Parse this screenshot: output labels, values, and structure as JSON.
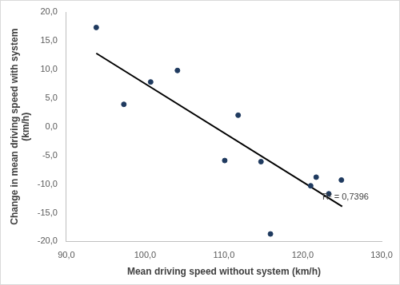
{
  "chart_data": {
    "type": "scatter",
    "x_label": "Mean driving speed without system (km/h)",
    "y_label": [
      "Change in mean driving speed with system",
      "(km/h)"
    ],
    "series": [
      {
        "type": "scatter",
        "marker": "circle",
        "color": "#1f3a5f",
        "x": [
          93.8,
          97.3,
          100.7,
          104.1,
          110.1,
          111.8,
          114.7,
          115.9,
          121.0,
          121.7,
          123.3,
          124.9
        ],
        "values": [
          17.3,
          3.9,
          7.8,
          9.8,
          -5.9,
          2.0,
          -6.1,
          -18.7,
          -10.3,
          -8.8,
          -11.7,
          -9.3
        ]
      },
      {
        "type": "line",
        "line_style": "solid",
        "color": "#000000",
        "x": [
          93.8,
          125.0
        ],
        "values": [
          12.8,
          -13.9
        ]
      }
    ],
    "annotations": [
      {
        "text": "R² = 0,7396",
        "x": 122.5,
        "y": -12.3
      }
    ],
    "xlim": [
      90,
      130
    ],
    "xticks": [
      {
        "value": 90,
        "label": "90,0"
      },
      {
        "value": 100,
        "label": "100,0"
      },
      {
        "value": 110,
        "label": "110,0"
      },
      {
        "value": 120,
        "label": "120,0"
      },
      {
        "value": 130,
        "label": "130,0"
      }
    ],
    "ylim": [
      -20,
      20
    ],
    "yticks": [
      {
        "value": -20,
        "label": "-20,0"
      },
      {
        "value": -15,
        "label": "-15,0"
      },
      {
        "value": -10,
        "label": "-10,0"
      },
      {
        "value": -5,
        "label": "-5,0"
      },
      {
        "value": 0,
        "label": "0,0"
      },
      {
        "value": 5,
        "label": "5,0"
      },
      {
        "value": 10,
        "label": "10,0"
      },
      {
        "value": 15,
        "label": "15,0"
      },
      {
        "value": 20,
        "label": "20,0"
      }
    ],
    "grid": false
  }
}
